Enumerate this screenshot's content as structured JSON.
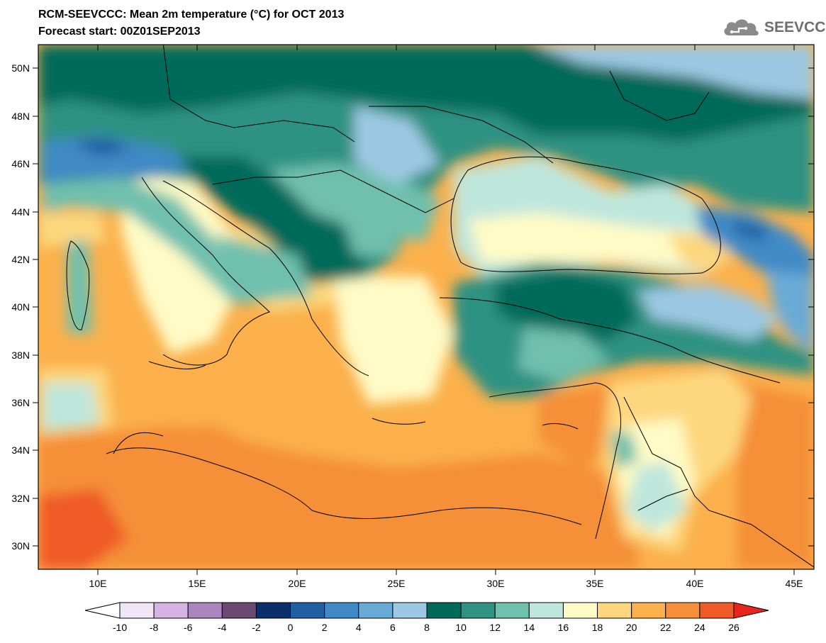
{
  "header": {
    "title": "RCM-SEEVCCC: Mean 2m temperature (°C) for OCT 2013",
    "subtitle": "Forecast start: 00Z01SEP2013",
    "logo_text": "SEEVCCC"
  },
  "map": {
    "lon_range": [
      7,
      46
    ],
    "lat_range": [
      29,
      51
    ],
    "lat_labels": [
      "50N",
      "48N",
      "46N",
      "44N",
      "42N",
      "40N",
      "38N",
      "36N",
      "34N",
      "32N",
      "30N"
    ],
    "lat_values": [
      50,
      48,
      46,
      44,
      42,
      40,
      38,
      36,
      34,
      32,
      30
    ],
    "lon_labels": [
      "10E",
      "15E",
      "20E",
      "25E",
      "30E",
      "35E",
      "40E",
      "45E"
    ],
    "lon_values": [
      10,
      15,
      20,
      25,
      30,
      35,
      40,
      45
    ]
  },
  "legend": {
    "labels": [
      "-10",
      "-8",
      "-6",
      "-4",
      "-2",
      "0",
      "2",
      "4",
      "6",
      "8",
      "10",
      "12",
      "14",
      "16",
      "18",
      "20",
      "22",
      "24",
      "26"
    ],
    "under_color": "#ffffff",
    "over_color": "#e8251c",
    "colors": [
      "#f1e6f7",
      "#d5b3e3",
      "#a986bf",
      "#6b4a72",
      "#0a2f6b",
      "#1f5fa2",
      "#3f8ac6",
      "#6aaad7",
      "#9cc8e3",
      "#006a5a",
      "#2f9282",
      "#6fc0ae",
      "#bfe6dc",
      "#fffbc6",
      "#fdd77e",
      "#fbb04c",
      "#f58f39",
      "#ef5a28"
    ]
  }
}
